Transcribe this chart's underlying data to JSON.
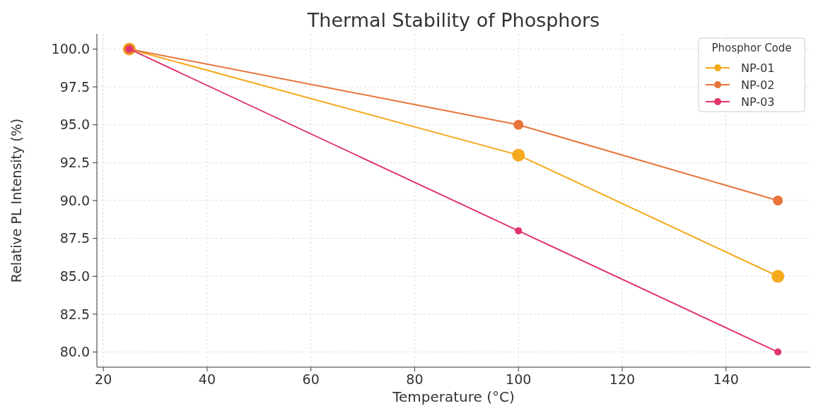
{
  "chart_data": {
    "type": "line",
    "title": "Thermal Stability of Phosphors",
    "xlabel": "Temperature (°C)",
    "ylabel": "Relative PL Intensity (%)",
    "legend_title": "Phosphor Code",
    "x": [
      25,
      100,
      150
    ],
    "series": [
      {
        "name": "NP-01",
        "color": "#f5a91c",
        "values": [
          100,
          93,
          85
        ]
      },
      {
        "name": "NP-02",
        "color": "#e8743b",
        "values": [
          100,
          95,
          90
        ]
      },
      {
        "name": "NP-03",
        "color": "#e0356a",
        "values": [
          100,
          88,
          80
        ]
      }
    ],
    "xlim": [
      18.75,
      156.25
    ],
    "xticks": [
      20,
      40,
      60,
      80,
      100,
      120,
      140
    ],
    "ylim": [
      79,
      101
    ],
    "yticks": [
      {
        "value": 80,
        "label": "80.0"
      },
      {
        "value": 82.5,
        "label": "82.5"
      },
      {
        "value": 85,
        "label": "85.0"
      },
      {
        "value": 87.5,
        "label": "87.5"
      },
      {
        "value": 90,
        "label": "90.0"
      },
      {
        "value": 92.5,
        "label": "92.5"
      },
      {
        "value": 95,
        "label": "95.0"
      },
      {
        "value": 97.5,
        "label": "97.5"
      },
      {
        "value": 100,
        "label": "100.0"
      }
    ],
    "grid": true,
    "legend": "top right",
    "marker": "circle",
    "line_style": "solid"
  }
}
